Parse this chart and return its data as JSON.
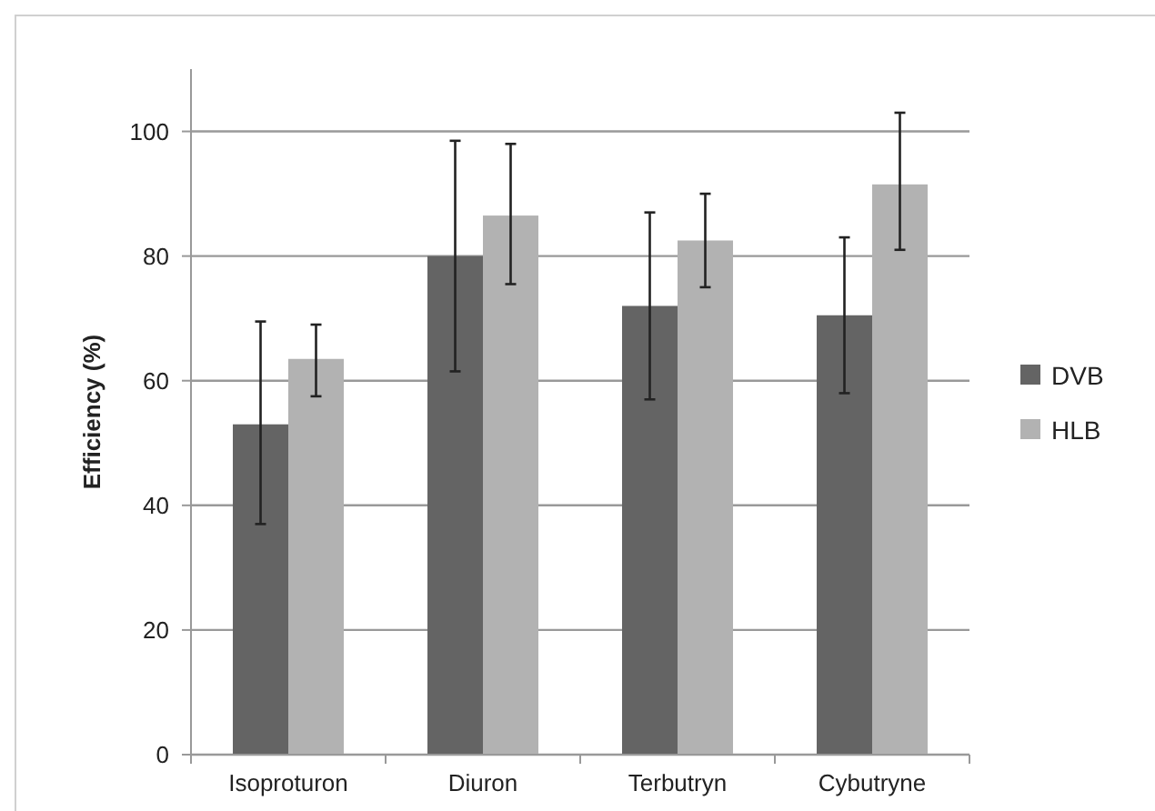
{
  "chart_data": {
    "type": "bar",
    "ylabel": "Efficiency (%)",
    "categories": [
      "Isoproturon",
      "Diuron",
      "Terbutryn",
      "Cybutryne"
    ],
    "series": [
      {
        "name": "DVB",
        "color": "#646464",
        "values": [
          53,
          80,
          72,
          70.5
        ],
        "errors": [
          [
            37,
            69.5
          ],
          [
            61.5,
            98.5
          ],
          [
            57,
            87
          ],
          [
            58,
            83
          ]
        ]
      },
      {
        "name": "HLB",
        "color": "#b2b2b2",
        "values": [
          63.5,
          86.5,
          82.5,
          91.5
        ],
        "errors": [
          [
            57.5,
            69
          ],
          [
            75.5,
            98
          ],
          [
            75,
            90
          ],
          [
            81,
            103
          ]
        ]
      }
    ],
    "ylim": [
      0,
      110
    ],
    "yticks": [
      0,
      20,
      40,
      60,
      80,
      100
    ],
    "grid": "y",
    "legend": "right"
  }
}
